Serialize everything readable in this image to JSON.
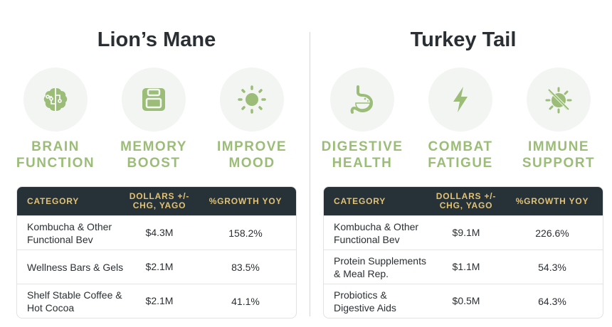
{
  "colors": {
    "accent": "#9bbd78",
    "header_bg": "#263238",
    "header_text": "#e2c275"
  },
  "panels": [
    {
      "title": "Lion’s Mane",
      "benefits": [
        {
          "icon": "brain-icon",
          "line1": "BRAIN",
          "line2": "FUNCTION"
        },
        {
          "icon": "floppy-disk-icon",
          "line1": "MEMORY",
          "line2": "BOOST"
        },
        {
          "icon": "sun-icon",
          "line1": "IMPROVE",
          "line2": "MOOD"
        }
      ],
      "table": {
        "headers": [
          "CATEGORY",
          "DOLLARS +/- CHG, YAGO",
          "%GROWTH YOY"
        ],
        "rows": [
          {
            "category": "Kombucha & Other Functional Bev",
            "dollars": "$4.3M",
            "growth": "158.2%"
          },
          {
            "category": "Wellness Bars & Gels",
            "dollars": "$2.1M",
            "growth": "83.5%"
          },
          {
            "category": "Shelf Stable Coffee & Hot Cocoa",
            "dollars": "$2.1M",
            "growth": "41.1%"
          }
        ]
      }
    },
    {
      "title": "Turkey Tail",
      "benefits": [
        {
          "icon": "stomach-icon",
          "line1": "DIGESTIVE",
          "line2": "HEALTH"
        },
        {
          "icon": "lightning-bolt-icon",
          "line1": "COMBAT",
          "line2": "FATIGUE"
        },
        {
          "icon": "virus-blocked-icon",
          "line1": "IMMUNE",
          "line2": "SUPPORT"
        }
      ],
      "table": {
        "headers": [
          "CATEGORY",
          "DOLLARS +/- CHG, YAGO",
          "%GROWTH YOY"
        ],
        "rows": [
          {
            "category": "Kombucha & Other Functional Bev",
            "dollars": "$9.1M",
            "growth": "226.6%"
          },
          {
            "category": "Protein Supplements & Meal Rep.",
            "dollars": "$1.1M",
            "growth": "54.3%"
          },
          {
            "category": "Probiotics & Digestive Aids",
            "dollars": "$0.5M",
            "growth": "64.3%"
          }
        ]
      }
    }
  ]
}
